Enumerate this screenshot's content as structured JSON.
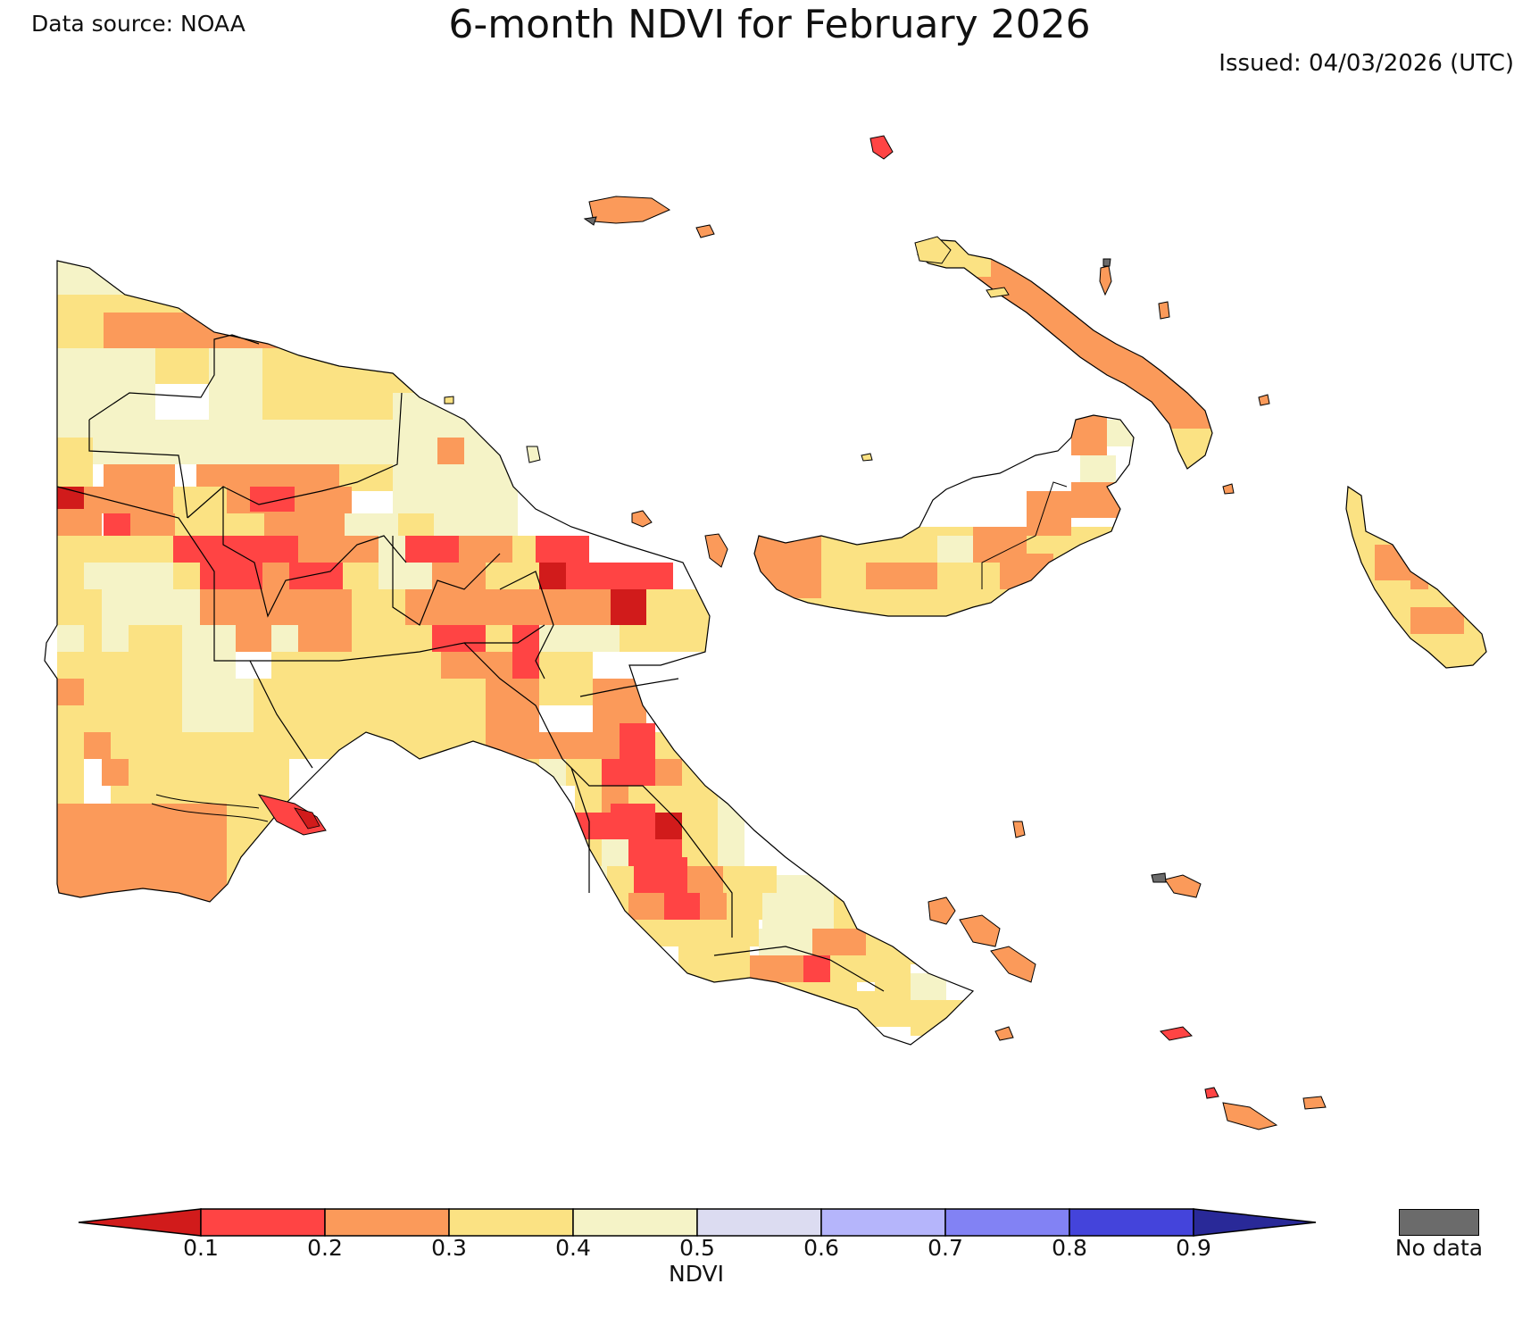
{
  "header": {
    "source": "Data source: NOAA",
    "title": "6-month NDVI for February 2026",
    "issued": "Issued: 04/03/2026 (UTC)"
  },
  "legend": {
    "label": "NDVI",
    "ticks": [
      "0.1",
      "0.2",
      "0.3",
      "0.4",
      "0.5",
      "0.6",
      "0.7",
      "0.8",
      "0.9"
    ],
    "colors": [
      "#ff4444",
      "#fb9a5a",
      "#fbe283",
      "#f5f3c7",
      "#dcdcf1",
      "#b5b5fb",
      "#8282f4",
      "#4444db"
    ],
    "under_color": "#d11b1b",
    "over_color": "#292998",
    "nodata_label": "No data",
    "nodata_color": "#6b6b6b"
  },
  "palette": {
    "r0": "#d11b1b",
    "r1": "#ff4444",
    "o": "#fb9a5a",
    "y": "#fbe283",
    "c": "#f5f3c7",
    "n": "#6b6b6b"
  }
}
